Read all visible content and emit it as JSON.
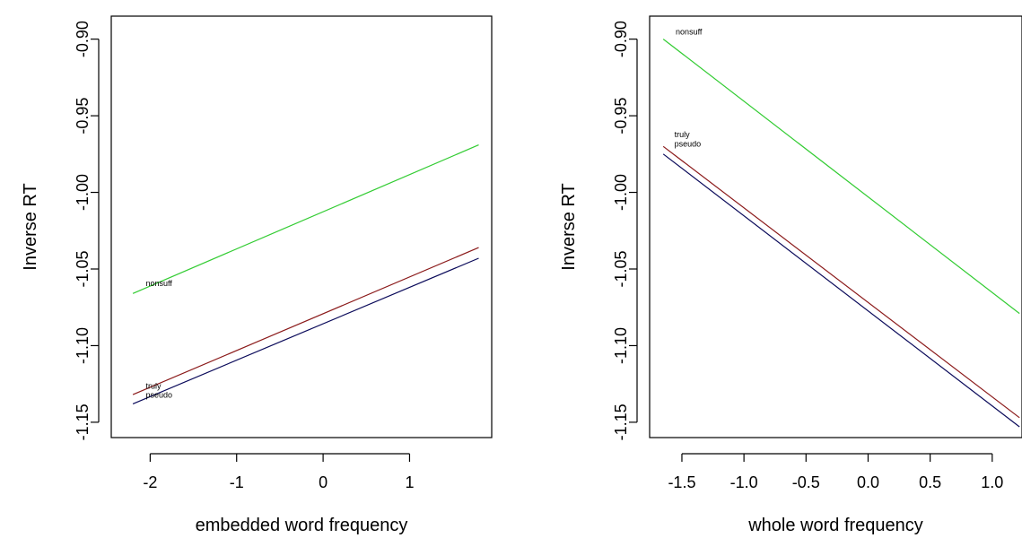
{
  "colors": {
    "nonsuff": "#33cc33",
    "truly": "#8b1a1a",
    "pseudo": "#0a0a5a",
    "axes": "#000000",
    "background": "#ffffff"
  },
  "chart_data": [
    {
      "type": "line",
      "title": "",
      "xlabel": "embedded word frequency",
      "ylabel": "Inverse RT",
      "xlim": [
        -2.45,
        1.95
      ],
      "ylim": [
        -1.16,
        -0.885
      ],
      "xticks": [
        -2,
        -1,
        0,
        1
      ],
      "xtick_labels": [
        "-2",
        "-1",
        "0",
        "1"
      ],
      "yticks": [
        -1.15,
        -1.1,
        -1.05,
        -1.0,
        -0.95,
        -0.9
      ],
      "ytick_labels": [
        "-1.15",
        "-1.10",
        "-1.05",
        "-1.00",
        "-0.95",
        "-0.90"
      ],
      "grid": false,
      "series": [
        {
          "name": "nonsuff",
          "color": "#33cc33",
          "x": [
            -2.2,
            1.8
          ],
          "y": [
            -1.066,
            -0.969
          ]
        },
        {
          "name": "truly",
          "color": "#8b1a1a",
          "x": [
            -2.2,
            1.8
          ],
          "y": [
            -1.132,
            -1.036
          ]
        },
        {
          "name": "pseudo",
          "color": "#0a0a5a",
          "x": [
            -2.2,
            1.8
          ],
          "y": [
            -1.138,
            -1.043
          ]
        }
      ],
      "annotations": [
        {
          "text": "nonsuff",
          "x": -2.05,
          "y": -1.061
        },
        {
          "text": "truly",
          "x": -2.05,
          "y": -1.128
        },
        {
          "text": "pseudo",
          "x": -2.05,
          "y": -1.134
        }
      ]
    },
    {
      "type": "line",
      "title": "",
      "xlabel": "whole word frequency",
      "ylabel": "Inverse RT",
      "xlim": [
        -1.76,
        1.24
      ],
      "ylim": [
        -1.16,
        -0.885
      ],
      "xticks": [
        -1.5,
        -1.0,
        -0.5,
        0.0,
        0.5,
        1.0
      ],
      "xtick_labels": [
        "-1.5",
        "-1.0",
        "-0.5",
        "0.0",
        "0.5",
        "1.0"
      ],
      "yticks": [
        -1.15,
        -1.1,
        -1.05,
        -1.0,
        -0.95,
        -0.9
      ],
      "ytick_labels": [
        "-1.15",
        "-1.10",
        "-1.05",
        "-1.00",
        "-0.95",
        "-0.90"
      ],
      "grid": false,
      "series": [
        {
          "name": "nonsuff",
          "color": "#33cc33",
          "x": [
            -1.65,
            1.22
          ],
          "y": [
            -0.9,
            -1.079
          ]
        },
        {
          "name": "truly",
          "color": "#8b1a1a",
          "x": [
            -1.65,
            1.22
          ],
          "y": [
            -0.97,
            -1.147
          ]
        },
        {
          "name": "pseudo",
          "color": "#0a0a5a",
          "x": [
            -1.65,
            1.22
          ],
          "y": [
            -0.975,
            -1.153
          ]
        }
      ],
      "annotations": [
        {
          "text": "nonsuff",
          "x": -1.55,
          "y": -0.897
        },
        {
          "text": "truly",
          "x": -1.56,
          "y": -0.964
        },
        {
          "text": "pseudo",
          "x": -1.56,
          "y": -0.97
        }
      ]
    }
  ]
}
